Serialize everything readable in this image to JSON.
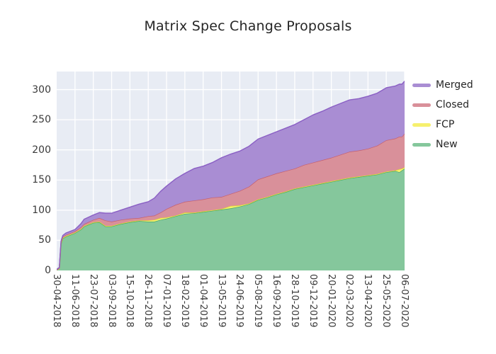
{
  "chart_data": {
    "type": "area",
    "stacked": true,
    "title": "Matrix Spec Change Proposals",
    "xlabel": "",
    "ylabel": "",
    "grid": true,
    "plot_bg": "#e8ecf4",
    "grid_color": "#ffffff",
    "ylim": [
      0,
      330
    ],
    "y_ticks": [
      0,
      50,
      100,
      150,
      200,
      250,
      300
    ],
    "x_range_days": [
      0,
      798
    ],
    "x_tick_days": [
      0,
      42,
      84,
      126,
      168,
      210,
      252,
      294,
      336,
      378,
      420,
      462,
      504,
      546,
      588,
      630,
      672,
      714,
      756,
      798
    ],
    "x_tick_labels": [
      "30-04-2018",
      "11-06-2018",
      "23-07-2018",
      "03-09-2018",
      "15-10-2018",
      "26-11-2018",
      "07-01-2019",
      "18-02-2019",
      "01-04-2019",
      "13-05-2019",
      "24-06-2019",
      "05-08-2019",
      "16-09-2019",
      "28-10-2019",
      "09-12-2019",
      "20-01-2020",
      "02-03-2020",
      "13-04-2020",
      "25-05-2020",
      "06-07-2020"
    ],
    "legend_position": "outside upper right",
    "legend_order": [
      "Merged",
      "Closed",
      "FCP",
      "New"
    ],
    "sample_days": [
      0,
      6,
      10,
      14,
      21,
      42,
      56,
      63,
      84,
      98,
      112,
      126,
      147,
      168,
      189,
      210,
      224,
      238,
      252,
      273,
      294,
      315,
      336,
      357,
      378,
      399,
      420,
      441,
      462,
      483,
      504,
      525,
      546,
      567,
      588,
      609,
      630,
      651,
      672,
      693,
      714,
      735,
      756,
      777,
      786,
      792,
      798
    ],
    "series": [
      {
        "name": "New",
        "color": "#85c79c",
        "edge": "#46a868",
        "values": [
          1,
          3,
          44,
          53,
          56,
          62,
          68,
          73,
          79,
          80,
          73,
          73,
          77,
          80,
          82,
          81,
          81,
          84,
          86,
          90,
          94,
          95,
          97,
          99,
          101,
          103,
          106,
          110,
          117,
          121,
          126,
          130,
          135,
          138,
          141,
          144,
          147,
          150,
          153,
          155,
          157,
          159,
          163,
          165,
          163,
          166,
          169
        ]
      },
      {
        "name": "FCP",
        "color": "#f6f06e",
        "edge": "#ddd531",
        "values": [
          0,
          0,
          1,
          1,
          1,
          1,
          1,
          1,
          1,
          1,
          1,
          1,
          1,
          1,
          1,
          2,
          3,
          3,
          2,
          1,
          2,
          1,
          1,
          1,
          1,
          4,
          2,
          1,
          1,
          1,
          1,
          1,
          1,
          1,
          1,
          1,
          1,
          1,
          1,
          1,
          1,
          1,
          1,
          1,
          5,
          3,
          2
        ]
      },
      {
        "name": "Closed",
        "color": "#d9909a",
        "edge": "#c55f6e",
        "values": [
          0,
          1,
          2,
          2,
          2,
          2,
          3,
          3,
          4,
          6,
          9,
          7,
          6,
          5,
          4,
          7,
          7,
          9,
          14,
          18,
          18,
          20,
          20,
          21,
          20,
          20,
          24,
          28,
          33,
          34,
          34,
          34,
          33,
          36,
          37,
          38,
          39,
          41,
          43,
          43,
          44,
          47,
          52,
          53,
          54,
          53,
          56
        ]
      },
      {
        "name": "Merged",
        "color": "#a98dd3",
        "edge": "#8a5fc4",
        "values": [
          1,
          1,
          2,
          2,
          3,
          3,
          6,
          8,
          8,
          9,
          12,
          14,
          16,
          19,
          23,
          24,
          29,
          35,
          38,
          43,
          47,
          53,
          55,
          58,
          65,
          66,
          66,
          67,
          67,
          68,
          69,
          71,
          73,
          75,
          79,
          81,
          84,
          85,
          86,
          86,
          87,
          87,
          87,
          87,
          87,
          87,
          87
        ]
      }
    ]
  }
}
